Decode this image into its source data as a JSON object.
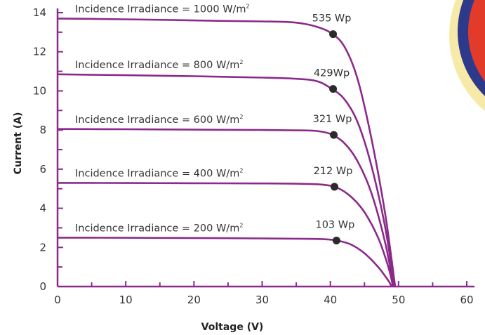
{
  "chart_data": {
    "type": "line",
    "title": "",
    "xlabel": "Voltage (V)",
    "ylabel": "Current (A)",
    "xlim": [
      0,
      60
    ],
    "ylim": [
      0,
      14
    ],
    "x_ticks": [
      0,
      10,
      20,
      30,
      40,
      50,
      60
    ],
    "y_ticks": [
      0,
      2,
      4,
      6,
      8,
      10,
      12,
      14
    ],
    "grid": false,
    "legend": "none",
    "colors": {
      "curve": "#8b2a8b",
      "axis": "#8b2a8b",
      "marker": "#2b2b2b"
    },
    "series": [
      {
        "label_prefix": "Incidence Irradiance = 1000 W/m",
        "label_sup": "2",
        "power_label": "535  Wp",
        "isc": 13.7,
        "voc": 49.5,
        "vmp": 40.4,
        "imp": 12.9,
        "points": [
          [
            0,
            13.7
          ],
          [
            10,
            13.66
          ],
          [
            20,
            13.6
          ],
          [
            30,
            13.55
          ],
          [
            34,
            13.52
          ],
          [
            36,
            13.44
          ],
          [
            38,
            13.28
          ],
          [
            40,
            12.98
          ],
          [
            42,
            12.3
          ],
          [
            44,
            10.6
          ],
          [
            46,
            7.6
          ],
          [
            48,
            3.8
          ],
          [
            49.5,
            0
          ]
        ]
      },
      {
        "label_prefix": "Incidence Irradiance = 800 W/m",
        "label_sup": "2",
        "power_label": "429Wp",
        "isc": 10.85,
        "voc": 49.4,
        "vmp": 40.4,
        "imp": 10.1,
        "points": [
          [
            0,
            10.85
          ],
          [
            10,
            10.8
          ],
          [
            20,
            10.75
          ],
          [
            30,
            10.68
          ],
          [
            35,
            10.62
          ],
          [
            38,
            10.5
          ],
          [
            40,
            10.15
          ],
          [
            42,
            9.6
          ],
          [
            44,
            8.4
          ],
          [
            46,
            6.2
          ],
          [
            48,
            3.1
          ],
          [
            49.4,
            0
          ]
        ]
      },
      {
        "label_prefix": "Incidence Irradiance = 600 W/m",
        "label_sup": "2",
        "power_label": "321 Wp",
        "isc": 8.05,
        "voc": 49.3,
        "vmp": 40.5,
        "imp": 7.75,
        "points": [
          [
            0,
            8.05
          ],
          [
            10,
            8.04
          ],
          [
            20,
            8.02
          ],
          [
            30,
            8.0
          ],
          [
            36,
            7.98
          ],
          [
            38,
            7.95
          ],
          [
            40,
            7.8
          ],
          [
            42,
            7.35
          ],
          [
            44,
            6.4
          ],
          [
            46,
            4.8
          ],
          [
            48,
            2.3
          ],
          [
            49.3,
            0
          ]
        ]
      },
      {
        "label_prefix": "Incidence Irradiance = 400 W/m",
        "label_sup": "2",
        "power_label": "212 Wp",
        "isc": 5.3,
        "voc": 49.2,
        "vmp": 40.6,
        "imp": 5.1,
        "points": [
          [
            0,
            5.3
          ],
          [
            10,
            5.29
          ],
          [
            20,
            5.28
          ],
          [
            30,
            5.27
          ],
          [
            36,
            5.25
          ],
          [
            39,
            5.2
          ],
          [
            41,
            5.05
          ],
          [
            43,
            4.6
          ],
          [
            45,
            3.8
          ],
          [
            47,
            2.5
          ],
          [
            48.5,
            1.0
          ],
          [
            49.2,
            0
          ]
        ]
      },
      {
        "label_prefix": "Incidence Irradiance = 200 W/m",
        "label_sup": "2",
        "power_label": "103 Wp",
        "isc": 2.5,
        "voc": 49.0,
        "vmp": 40.9,
        "imp": 2.35,
        "points": [
          [
            0,
            2.5
          ],
          [
            10,
            2.49
          ],
          [
            20,
            2.48
          ],
          [
            30,
            2.46
          ],
          [
            36,
            2.44
          ],
          [
            39,
            2.42
          ],
          [
            41,
            2.35
          ],
          [
            43,
            2.15
          ],
          [
            45,
            1.7
          ],
          [
            47,
            1.0
          ],
          [
            48.5,
            0.3
          ],
          [
            49.0,
            0
          ]
        ]
      }
    ]
  }
}
